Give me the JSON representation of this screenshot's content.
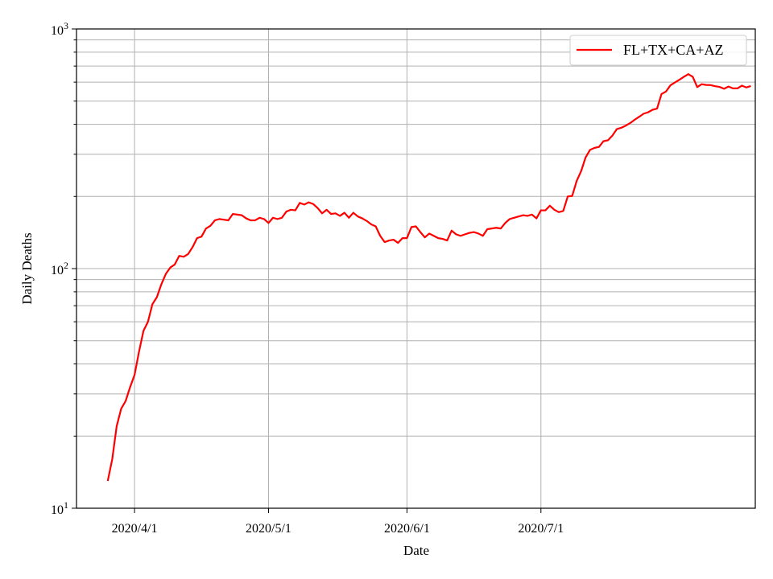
{
  "chart_data": {
    "type": "line",
    "xlabel": "Date",
    "ylabel": "Daily Deaths",
    "yscale": "log",
    "ylim": [
      10,
      1000
    ],
    "xlim": [
      "2020-03-19",
      "2020-08-18"
    ],
    "grid": true,
    "legend_position": "top-right",
    "x_ticks": [
      {
        "date": "2020-04-01",
        "label": "2020/4/1"
      },
      {
        "date": "2020-05-01",
        "label": "2020/5/1"
      },
      {
        "date": "2020-06-01",
        "label": "2020/6/1"
      },
      {
        "date": "2020-07-01",
        "label": "2020/7/1"
      }
    ],
    "y_ticks": [
      {
        "value": 10,
        "base": "10",
        "exp": "1"
      },
      {
        "value": 100,
        "base": "10",
        "exp": "2"
      },
      {
        "value": 1000,
        "base": "10",
        "exp": "3"
      }
    ],
    "series": [
      {
        "name": "FL+TX+CA+AZ",
        "color": "#ff0000",
        "start_date": "2020-03-26",
        "values": [
          13,
          16,
          22,
          26,
          28,
          32,
          36,
          45,
          55,
          60,
          71,
          76,
          86,
          95,
          101,
          104,
          113,
          112,
          115,
          123,
          134,
          136,
          147,
          151,
          159,
          161,
          160,
          159,
          169,
          168,
          167,
          162,
          159,
          159,
          163,
          161,
          155,
          163,
          161,
          163,
          173,
          176,
          175,
          188,
          185,
          189,
          186,
          179,
          170,
          176,
          169,
          170,
          166,
          171,
          163,
          171,
          165,
          162,
          158,
          153,
          150,
          137,
          129,
          131,
          132,
          128,
          134,
          134,
          149,
          150,
          142,
          135,
          140,
          137,
          134,
          133,
          131,
          144,
          139,
          137,
          139,
          141,
          142,
          140,
          137,
          146,
          147,
          148,
          147,
          155,
          161,
          163,
          165,
          167,
          166,
          168,
          162,
          175,
          175,
          183,
          176,
          172,
          174,
          200,
          201,
          232,
          255,
          291,
          313,
          319,
          322,
          340,
          343,
          359,
          382,
          387,
          395,
          405,
          418,
          430,
          443,
          449,
          460,
          465,
          535,
          548,
          582,
          598,
          614,
          631,
          648,
          631,
          572,
          588,
          584,
          583,
          577,
          573,
          563,
          575,
          565,
          565,
          580,
          570,
          578
        ]
      }
    ]
  }
}
